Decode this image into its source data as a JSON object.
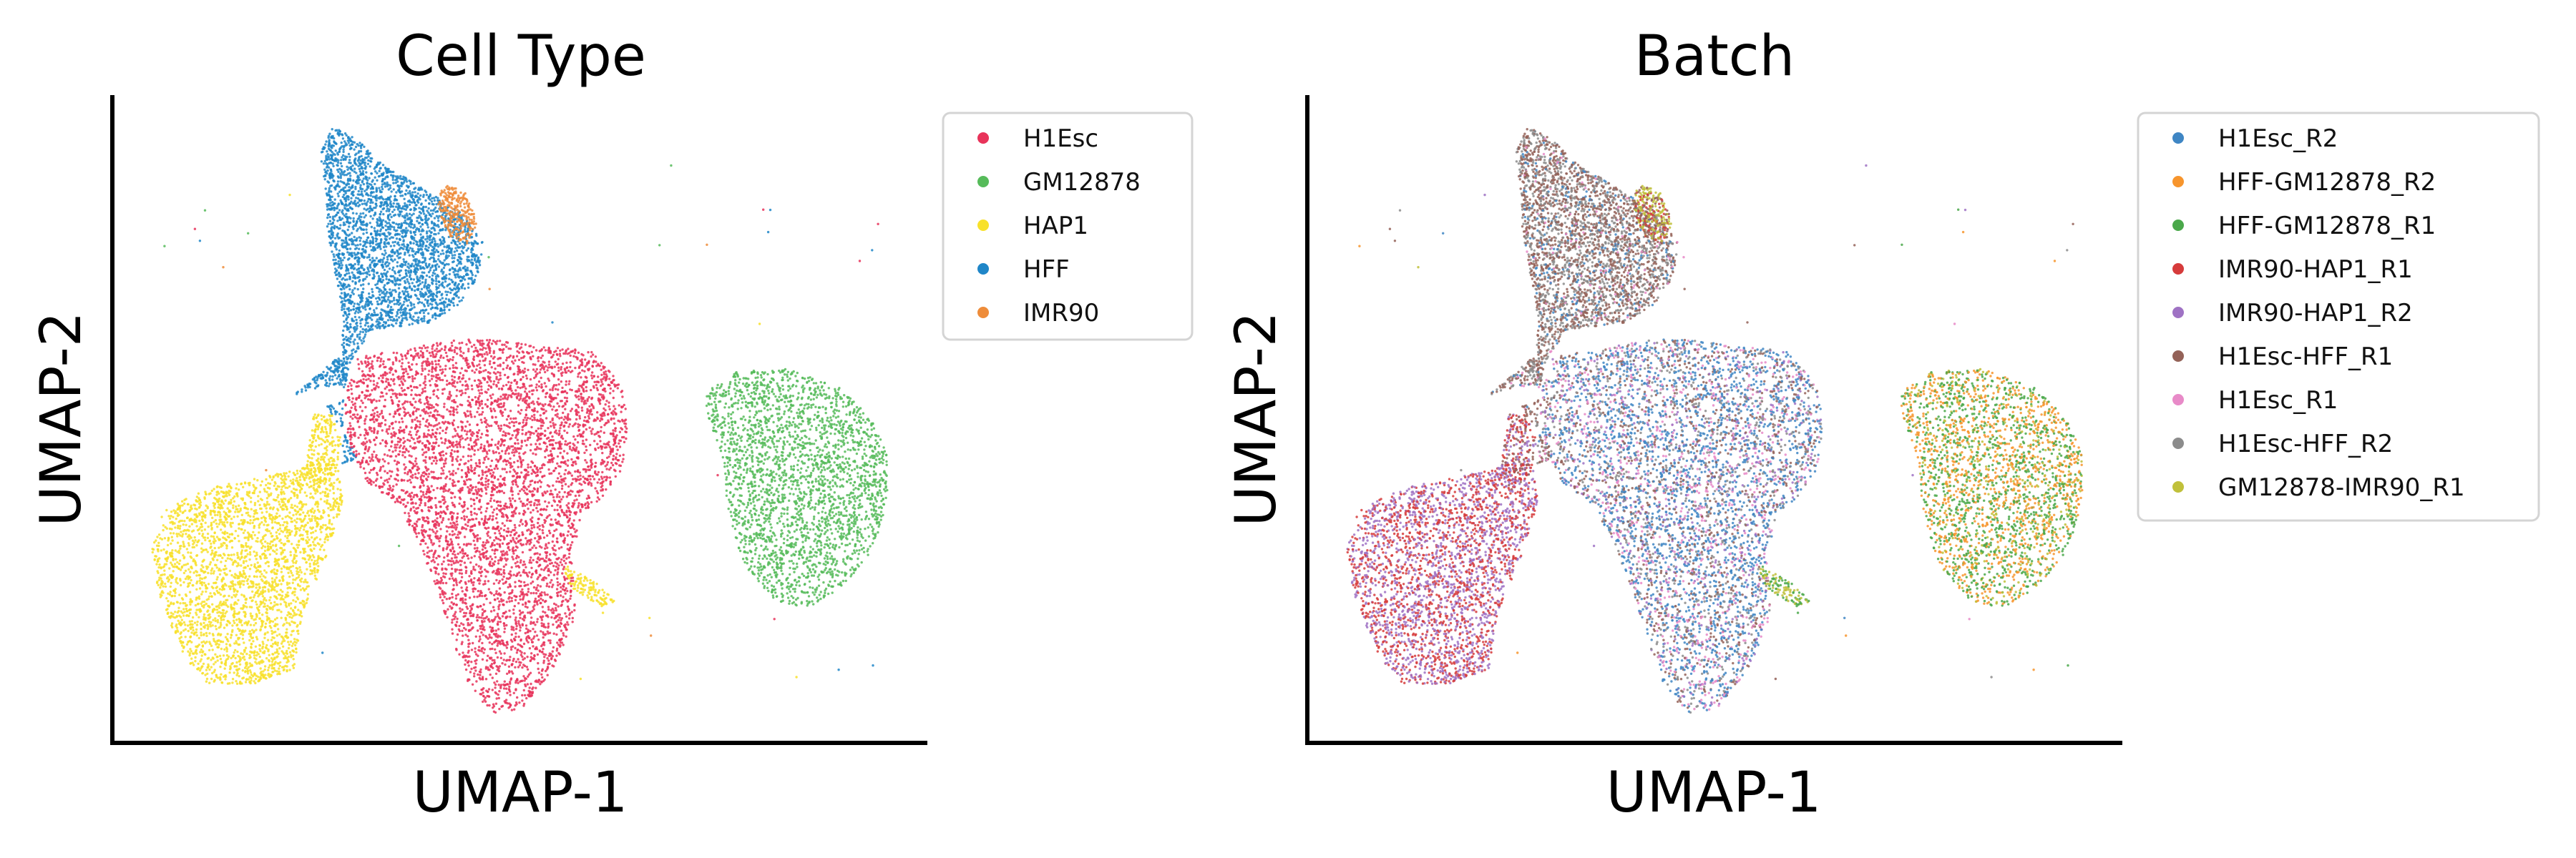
{
  "chart_data": [
    {
      "type": "scatter",
      "title": "Cell Type",
      "xlabel": "UMAP-1",
      "ylabel": "UMAP-2",
      "ticks": "none",
      "legend_position": "right",
      "series": [
        {
          "name": "H1Esc",
          "color": "#e8335a"
        },
        {
          "name": "GM12878",
          "color": "#56bb5a"
        },
        {
          "name": "HAP1",
          "color": "#f8e12a"
        },
        {
          "name": "HFF",
          "color": "#1f86c8"
        },
        {
          "name": "IMR90",
          "color": "#ee8c3a"
        }
      ]
    },
    {
      "type": "scatter",
      "title": "Batch",
      "xlabel": "UMAP-1",
      "ylabel": "UMAP-2",
      "ticks": "none",
      "legend_position": "right",
      "series": [
        {
          "name": "H1Esc_R2",
          "color": "#3f86c4"
        },
        {
          "name": "HFF-GM12878_R2",
          "color": "#f7952d"
        },
        {
          "name": "HFF-GM12878_R1",
          "color": "#4aa84a"
        },
        {
          "name": "IMR90-HAP1_R1",
          "color": "#d63b3b"
        },
        {
          "name": "IMR90-HAP1_R2",
          "color": "#9f72c4"
        },
        {
          "name": "H1Esc-HFF_R1",
          "color": "#946258"
        },
        {
          "name": "H1Esc_R1",
          "color": "#e88ac8"
        },
        {
          "name": "H1Esc-HFF_R2",
          "color": "#8c8c8c"
        },
        {
          "name": "GM12878-IMR90_R1",
          "color": "#c0c03a"
        }
      ]
    }
  ]
}
